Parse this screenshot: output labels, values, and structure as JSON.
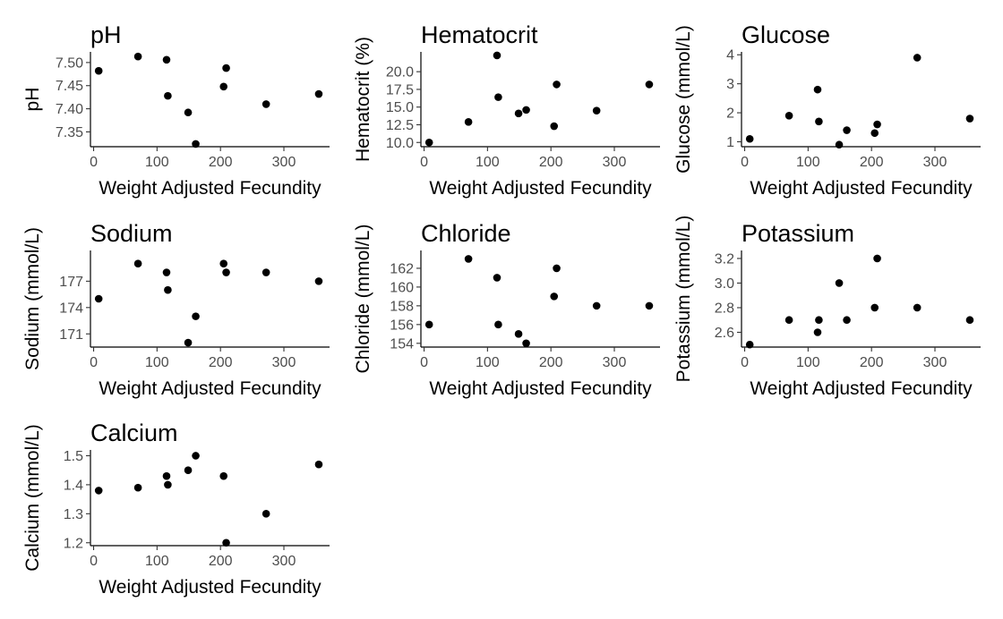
{
  "chart_data": [
    {
      "type": "scatter",
      "title": "pH",
      "xlabel": "Weight Adjusted Fecundity",
      "ylabel": "pH",
      "xlim": [
        -5,
        372
      ],
      "ylim": [
        7.318,
        7.523
      ],
      "xticks": [
        0,
        100,
        200,
        300
      ],
      "xtick_labels": [
        "0",
        "100",
        "200",
        "300"
      ],
      "yticks": [
        7.35,
        7.4,
        7.45,
        7.5
      ],
      "ytick_labels": [
        "7.35",
        "7.40",
        "7.45",
        "7.50"
      ],
      "grid": false,
      "point_color": "#000000",
      "x": [
        8,
        70,
        115,
        117,
        149,
        161,
        205,
        209,
        272,
        355
      ],
      "y": [
        7.482,
        7.513,
        7.506,
        7.428,
        7.392,
        7.324,
        7.448,
        7.488,
        7.41,
        7.432
      ]
    },
    {
      "type": "scatter",
      "title": "Hematocrit",
      "xlabel": "Weight Adjusted Fecundity",
      "ylabel": "Hematocrit (%)",
      "xlim": [
        -5,
        372
      ],
      "ylim": [
        9.4,
        22.8
      ],
      "xticks": [
        0,
        100,
        200,
        300
      ],
      "xtick_labels": [
        "0",
        "100",
        "200",
        "300"
      ],
      "yticks": [
        10.0,
        12.5,
        15.0,
        17.5,
        20.0
      ],
      "ytick_labels": [
        "10.0",
        "12.5",
        "15.0",
        "17.5",
        "20.0"
      ],
      "grid": false,
      "point_color": "#000000",
      "x": [
        8,
        70,
        115,
        117,
        149,
        161,
        205,
        209,
        272,
        355
      ],
      "y": [
        10.0,
        12.9,
        22.3,
        16.4,
        14.1,
        14.6,
        12.3,
        18.2,
        14.5,
        18.2
      ]
    },
    {
      "type": "scatter",
      "title": "Glucose",
      "xlabel": "Weight Adjusted Fecundity",
      "ylabel": "Glucose (mmol/L)",
      "xlim": [
        -5,
        372
      ],
      "ylim": [
        0.83,
        4.1
      ],
      "xticks": [
        0,
        100,
        200,
        300
      ],
      "xtick_labels": [
        "0",
        "100",
        "200",
        "300"
      ],
      "yticks": [
        1,
        2,
        3,
        4
      ],
      "ytick_labels": [
        "1",
        "2",
        "3",
        "4"
      ],
      "grid": false,
      "point_color": "#000000",
      "x": [
        8,
        70,
        115,
        117,
        149,
        161,
        205,
        209,
        272,
        355
      ],
      "y": [
        1.1,
        1.9,
        2.8,
        1.7,
        0.9,
        1.4,
        1.3,
        1.6,
        3.9,
        1.8
      ]
    },
    {
      "type": "scatter",
      "title": "Sodium",
      "xlabel": "Weight Adjusted Fecundity",
      "ylabel": "Sodium (mmol/L)",
      "xlim": [
        -5,
        372
      ],
      "ylim": [
        169.5,
        180.5
      ],
      "xticks": [
        0,
        100,
        200,
        300
      ],
      "xtick_labels": [
        "0",
        "100",
        "200",
        "300"
      ],
      "yticks": [
        171,
        174,
        177
      ],
      "ytick_labels": [
        "171",
        "174",
        "177"
      ],
      "grid": false,
      "point_color": "#000000",
      "x": [
        8,
        70,
        115,
        117,
        149,
        161,
        205,
        209,
        272,
        355
      ],
      "y": [
        175,
        179,
        178,
        176,
        170,
        173,
        179,
        178,
        178,
        177
      ]
    },
    {
      "type": "scatter",
      "title": "Chloride",
      "xlabel": "Weight Adjusted Fecundity",
      "ylabel": "Chloride (mmol/L)",
      "xlim": [
        -5,
        372
      ],
      "ylim": [
        153.6,
        163.9
      ],
      "xticks": [
        0,
        100,
        200,
        300
      ],
      "xtick_labels": [
        "0",
        "100",
        "200",
        "300"
      ],
      "yticks": [
        154,
        156,
        158,
        160,
        162
      ],
      "ytick_labels": [
        "154",
        "156",
        "158",
        "160",
        "162"
      ],
      "grid": false,
      "point_color": "#000000",
      "x": [
        8,
        70,
        115,
        117,
        149,
        161,
        205,
        209,
        272,
        355
      ],
      "y": [
        156,
        163,
        161,
        156,
        155,
        154,
        159,
        162,
        158,
        158
      ]
    },
    {
      "type": "scatter",
      "title": "Potassium",
      "xlabel": "Weight Adjusted Fecundity",
      "ylabel": "Potassium (mmol/L)",
      "xlim": [
        -5,
        372
      ],
      "ylim": [
        2.48,
        3.265
      ],
      "xticks": [
        0,
        100,
        200,
        300
      ],
      "xtick_labels": [
        "0",
        "100",
        "200",
        "300"
      ],
      "yticks": [
        2.6,
        2.8,
        3.0,
        3.2
      ],
      "ytick_labels": [
        "2.6",
        "2.8",
        "3.0",
        "3.2"
      ],
      "grid": false,
      "point_color": "#000000",
      "x": [
        8,
        70,
        115,
        117,
        149,
        161,
        205,
        209,
        272,
        355
      ],
      "y": [
        2.5,
        2.7,
        2.6,
        2.7,
        3.0,
        2.7,
        2.8,
        3.2,
        2.8,
        2.7
      ]
    },
    {
      "type": "scatter",
      "title": "Calcium",
      "xlabel": "Weight Adjusted Fecundity",
      "ylabel": "Calcium (mmol/L)",
      "xlim": [
        -5,
        372
      ],
      "ylim": [
        1.19,
        1.52
      ],
      "xticks": [
        0,
        100,
        200,
        300
      ],
      "xtick_labels": [
        "0",
        "100",
        "200",
        "300"
      ],
      "yticks": [
        1.2,
        1.3,
        1.4,
        1.5
      ],
      "ytick_labels": [
        "1.2",
        "1.3",
        "1.4",
        "1.5"
      ],
      "grid": false,
      "point_color": "#000000",
      "x": [
        8,
        70,
        115,
        117,
        149,
        161,
        205,
        209,
        272,
        355
      ],
      "y": [
        1.38,
        1.39,
        1.43,
        1.4,
        1.45,
        1.5,
        1.43,
        1.2,
        1.3,
        1.47
      ]
    }
  ]
}
